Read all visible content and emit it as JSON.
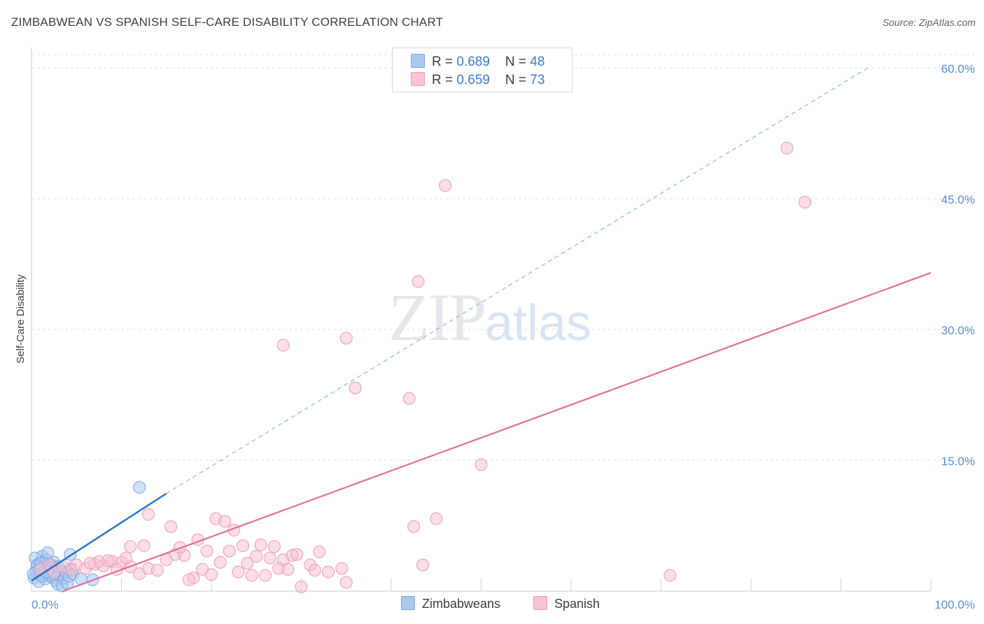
{
  "title": "ZIMBABWEAN VS SPANISH SELF-CARE DISABILITY CORRELATION CHART",
  "source": "Source: ZipAtlas.com",
  "watermark": {
    "zip": "ZIP",
    "atlas": "atlas"
  },
  "legend": {
    "rows": [
      {
        "r_label": "R = ",
        "r_value": "0.689",
        "n_label": "N = ",
        "n_value": "48",
        "color": "#aac8f0",
        "border": "#7aa8e0"
      },
      {
        "r_label": "R = ",
        "r_value": "0.659",
        "n_label": "N = ",
        "n_value": "73",
        "color": "#f8c3d3",
        "border": "#ee9ab5"
      }
    ],
    "bottom": [
      {
        "label": "Zimbabweans",
        "color": "#aac8f0",
        "border": "#7aa8e0"
      },
      {
        "label": "Spanish",
        "color": "#f8c3d3",
        "border": "#ee9ab5"
      }
    ]
  },
  "chart_data": {
    "type": "scatter",
    "title": "ZIMBABWEAN VS SPANISH SELF-CARE DISABILITY CORRELATION CHART",
    "xlabel": "",
    "ylabel": "Self-Care Disability",
    "xlim": [
      0,
      100
    ],
    "ylim": [
      0,
      60
    ],
    "x_tick_labels": [
      "0.0%",
      "100.0%"
    ],
    "y_tick_labels": [
      "15.0%",
      "30.0%",
      "45.0%",
      "60.0%"
    ],
    "y_ticks": [
      15,
      30,
      45,
      60
    ],
    "grid": true,
    "legend_position": "top-center",
    "series": [
      {
        "name": "Zimbabweans",
        "color": "#7aa8e0",
        "fill": "#aac8f0",
        "trend": {
          "x0": 0,
          "y0": 1.2,
          "x1": 15,
          "y1": 11.2,
          "color": "#2f72c8",
          "extended_to_x": 93,
          "extended_y": 60.0
        },
        "points": [
          [
            0.3,
            1.5
          ],
          [
            0.5,
            2.2
          ],
          [
            0.7,
            3.1
          ],
          [
            0.9,
            1.9
          ],
          [
            1.1,
            2.6
          ],
          [
            1.2,
            4.0
          ],
          [
            1.3,
            3.4
          ],
          [
            1.4,
            2.0
          ],
          [
            1.5,
            1.4
          ],
          [
            1.6,
            2.8
          ],
          [
            1.7,
            3.6
          ],
          [
            1.8,
            4.4
          ],
          [
            1.9,
            2.3
          ],
          [
            2.0,
            1.8
          ],
          [
            2.1,
            3.0
          ],
          [
            2.2,
            2.5
          ],
          [
            2.3,
            1.6
          ],
          [
            2.4,
            2.9
          ],
          [
            2.5,
            3.3
          ],
          [
            2.6,
            2.1
          ],
          [
            2.7,
            1.2
          ],
          [
            2.8,
            2.7
          ],
          [
            2.9,
            0.8
          ],
          [
            3.0,
            1.9
          ],
          [
            3.2,
            2.4
          ],
          [
            3.4,
            0.6
          ],
          [
            3.6,
            1.5
          ],
          [
            3.8,
            2.2
          ],
          [
            4.0,
            0.9
          ],
          [
            4.2,
            1.7
          ],
          [
            4.4,
            2.6
          ],
          [
            4.6,
            2.0
          ],
          [
            0.4,
            3.8
          ],
          [
            0.6,
            2.9
          ],
          [
            0.8,
            1.1
          ],
          [
            1.0,
            3.2
          ],
          [
            1.5,
            2.4
          ],
          [
            2.0,
            2.6
          ],
          [
            2.5,
            1.9
          ],
          [
            3.0,
            2.8
          ],
          [
            1.2,
            1.7
          ],
          [
            1.7,
            2.2
          ],
          [
            0.9,
            2.5
          ],
          [
            5.5,
            1.4
          ],
          [
            4.3,
            4.2
          ],
          [
            6.8,
            1.3
          ],
          [
            12.0,
            11.9
          ],
          [
            0.2,
            2.0
          ]
        ]
      },
      {
        "name": "Spanish",
        "color": "#ee9ab5",
        "fill": "#f8c3d3",
        "trend": {
          "x0": 3.5,
          "y0": 0,
          "x1": 100,
          "y1": 36.5,
          "color": "#e0709a"
        },
        "points": [
          [
            1.0,
            2.5
          ],
          [
            2.0,
            3.0
          ],
          [
            2.5,
            2.2
          ],
          [
            3.5,
            2.8
          ],
          [
            4.5,
            2.4
          ],
          [
            5.0,
            3.0
          ],
          [
            6.0,
            2.6
          ],
          [
            7.0,
            3.1
          ],
          [
            8.0,
            2.9
          ],
          [
            9.0,
            3.4
          ],
          [
            10.0,
            3.3
          ],
          [
            11.0,
            2.8
          ],
          [
            12.0,
            2.0
          ],
          [
            13.0,
            2.6
          ],
          [
            14.0,
            2.4
          ],
          [
            15.0,
            3.6
          ],
          [
            16.0,
            4.2
          ],
          [
            17.0,
            4.1
          ],
          [
            18.0,
            1.5
          ],
          [
            19.0,
            2.5
          ],
          [
            20.0,
            1.9
          ],
          [
            21.0,
            3.3
          ],
          [
            22.0,
            4.6
          ],
          [
            23.0,
            2.2
          ],
          [
            24.0,
            3.2
          ],
          [
            25.0,
            4.0
          ],
          [
            26.0,
            1.8
          ],
          [
            27.0,
            5.1
          ],
          [
            28.0,
            3.6
          ],
          [
            29.0,
            4.1
          ],
          [
            30.0,
            0.5
          ],
          [
            31.0,
            3.0
          ],
          [
            32.0,
            4.5
          ],
          [
            33.0,
            2.2
          ],
          [
            11.0,
            5.1
          ],
          [
            12.5,
            5.2
          ],
          [
            13.0,
            8.8
          ],
          [
            15.5,
            7.4
          ],
          [
            16.5,
            5.0
          ],
          [
            17.5,
            1.3
          ],
          [
            18.5,
            5.9
          ],
          [
            19.5,
            4.6
          ],
          [
            20.5,
            8.3
          ],
          [
            21.5,
            8.0
          ],
          [
            22.5,
            7.0
          ],
          [
            23.5,
            5.2
          ],
          [
            24.5,
            1.8
          ],
          [
            25.5,
            5.3
          ],
          [
            26.5,
            3.8
          ],
          [
            27.5,
            2.6
          ],
          [
            28.5,
            2.5
          ],
          [
            29.5,
            4.2
          ],
          [
            31.5,
            2.4
          ],
          [
            35.0,
            1.0
          ],
          [
            36.0,
            23.3
          ],
          [
            34.5,
            2.6
          ],
          [
            35.0,
            29.0
          ],
          [
            42.0,
            22.1
          ],
          [
            42.5,
            7.4
          ],
          [
            43.5,
            3.0
          ],
          [
            45.0,
            8.3
          ],
          [
            46.0,
            46.5
          ],
          [
            50.0,
            14.5
          ],
          [
            71.0,
            1.8
          ],
          [
            84.0,
            50.8
          ],
          [
            86.0,
            44.6
          ],
          [
            28.0,
            28.2
          ],
          [
            43.0,
            35.5
          ],
          [
            7.5,
            3.4
          ],
          [
            9.5,
            2.5
          ],
          [
            10.5,
            3.8
          ],
          [
            6.5,
            3.2
          ],
          [
            8.5,
            3.5
          ]
        ]
      }
    ]
  }
}
